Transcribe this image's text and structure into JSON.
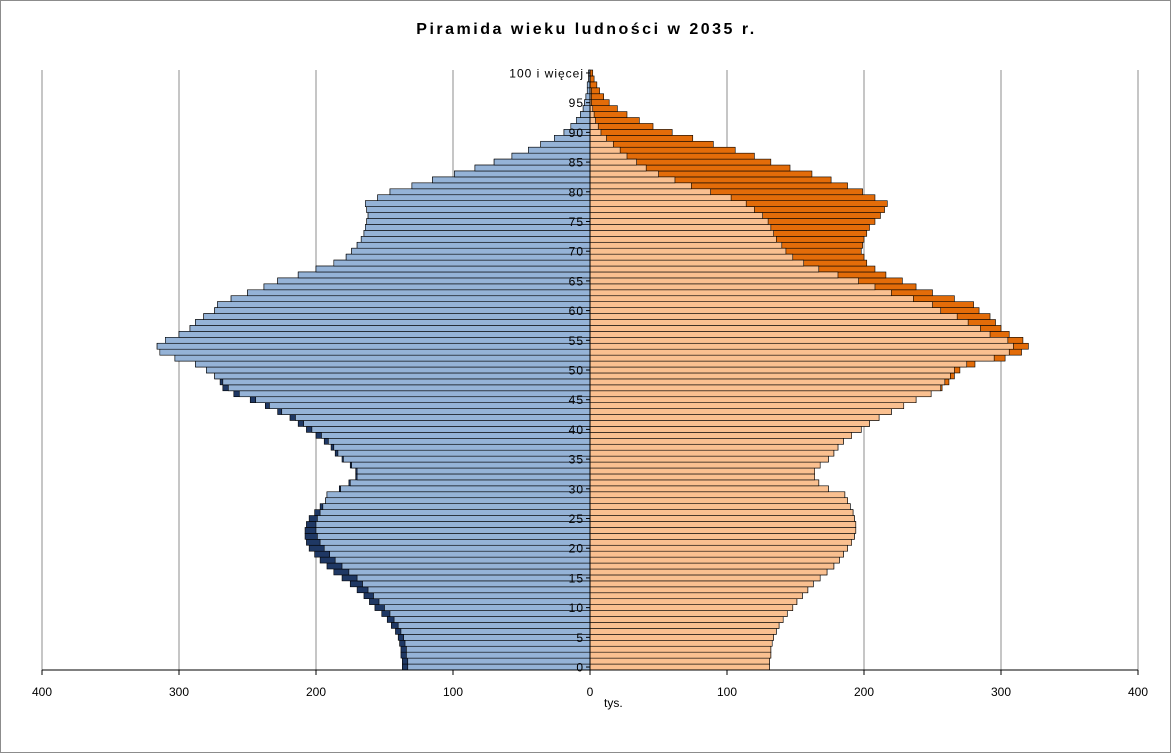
{
  "chart_data": {
    "type": "bar",
    "title": "Piramida wieku ludności w 2035 r.",
    "xlabel": "tys.",
    "ylabel": "",
    "xlim": [
      -400,
      400
    ],
    "x_ticks": [
      "400",
      "300",
      "200",
      "100",
      "0",
      "100",
      "200",
      "300",
      "400"
    ],
    "age_labels": [
      "0",
      "5",
      "10",
      "15",
      "20",
      "25",
      "30",
      "35",
      "40",
      "45",
      "50",
      "55",
      "60",
      "65",
      "70",
      "75",
      "80",
      "85",
      "90",
      "95",
      "100 i więcej"
    ],
    "ages": [
      0,
      1,
      2,
      3,
      4,
      5,
      6,
      7,
      8,
      9,
      10,
      11,
      12,
      13,
      14,
      15,
      16,
      17,
      18,
      19,
      20,
      21,
      22,
      23,
      24,
      25,
      26,
      27,
      28,
      29,
      30,
      31,
      32,
      33,
      34,
      35,
      36,
      37,
      38,
      39,
      40,
      41,
      42,
      43,
      44,
      45,
      46,
      47,
      48,
      49,
      50,
      51,
      52,
      53,
      54,
      55,
      56,
      57,
      58,
      59,
      60,
      61,
      62,
      63,
      64,
      65,
      66,
      67,
      68,
      69,
      70,
      71,
      72,
      73,
      74,
      75,
      76,
      77,
      78,
      79,
      80,
      81,
      82,
      83,
      84,
      85,
      86,
      87,
      88,
      89,
      90,
      91,
      92,
      93,
      94,
      95,
      96,
      97,
      98,
      99,
      100
    ],
    "series": [
      {
        "name": "",
        "side": "left",
        "color": "#95b3d7",
        "values": [
          133,
          133,
          134,
          134,
          135,
          136,
          138,
          140,
          143,
          146,
          150,
          154,
          158,
          162,
          166,
          170,
          176,
          181,
          186,
          190,
          194,
          197,
          199,
          200,
          200,
          199,
          197,
          195,
          193,
          192,
          182,
          175,
          170,
          170,
          174,
          180,
          184,
          187,
          191,
          196,
          203,
          209,
          215,
          225,
          234,
          244,
          256,
          264,
          268,
          274,
          280,
          288,
          303,
          314,
          316,
          310,
          300,
          292,
          288,
          282,
          274,
          272,
          262,
          250,
          238,
          228,
          213,
          200,
          187,
          178,
          174,
          170,
          167,
          165,
          164,
          163,
          162,
          163,
          164,
          155,
          146,
          130,
          115,
          99,
          84,
          70,
          57,
          45,
          36,
          26,
          19,
          14,
          10,
          7,
          5,
          4,
          3,
          2,
          2,
          1,
          1
        ]
      },
      {
        "name": "",
        "side": "left_excess",
        "color": "#1f3864",
        "values": [
          137,
          137,
          138,
          138,
          139,
          140,
          142,
          145,
          148,
          152,
          157,
          161,
          165,
          170,
          175,
          181,
          187,
          192,
          197,
          201,
          205,
          207,
          208,
          208,
          207,
          205,
          201,
          197,
          193,
          192,
          183,
          176,
          171,
          171,
          175,
          181,
          186,
          189,
          194,
          200,
          207,
          213,
          219,
          228,
          237,
          248,
          260,
          268,
          270,
          274,
          280,
          288,
          303,
          314,
          316,
          310,
          300,
          292,
          288,
          282,
          274,
          272,
          262,
          250,
          238,
          228,
          213,
          200,
          187,
          178,
          174,
          170,
          167,
          165,
          164,
          163,
          162,
          163,
          164,
          155,
          146,
          130,
          115,
          99,
          84,
          70,
          57,
          45,
          36,
          26,
          19,
          14,
          10,
          7,
          5,
          4,
          3,
          2,
          2,
          1,
          1
        ]
      },
      {
        "name": "",
        "side": "right",
        "color": "#fac090",
        "values": [
          131,
          131,
          132,
          132,
          133,
          134,
          136,
          138,
          141,
          144,
          148,
          151,
          155,
          159,
          163,
          168,
          173,
          178,
          182,
          185,
          188,
          191,
          193,
          194,
          194,
          193,
          192,
          190,
          188,
          186,
          174,
          167,
          164,
          164,
          168,
          174,
          178,
          181,
          185,
          191,
          198,
          204,
          211,
          220,
          229,
          238,
          249,
          256,
          259,
          263,
          266,
          275,
          295,
          306,
          309,
          305,
          292,
          285,
          276,
          268,
          256,
          250,
          236,
          220,
          208,
          196,
          181,
          167,
          156,
          148,
          143,
          140,
          136,
          134,
          132,
          130,
          126,
          120,
          114,
          103,
          88,
          74,
          62,
          50,
          41,
          34,
          27,
          22,
          17,
          12,
          8,
          6,
          4,
          3,
          2,
          1,
          1,
          1,
          0,
          0,
          0
        ]
      },
      {
        "name": "",
        "side": "right_excess",
        "color": "#e36c09",
        "values": [
          131,
          131,
          132,
          132,
          133,
          134,
          136,
          138,
          141,
          144,
          148,
          151,
          155,
          159,
          163,
          168,
          173,
          178,
          182,
          185,
          188,
          191,
          193,
          194,
          194,
          193,
          192,
          190,
          188,
          186,
          174,
          167,
          164,
          164,
          168,
          174,
          178,
          181,
          185,
          191,
          198,
          204,
          211,
          220,
          229,
          238,
          249,
          257,
          262,
          266,
          270,
          281,
          303,
          315,
          320,
          316,
          306,
          300,
          296,
          292,
          284,
          280,
          266,
          250,
          238,
          228,
          216,
          208,
          202,
          200,
          198,
          199,
          200,
          202,
          204,
          208,
          212,
          215,
          217,
          208,
          199,
          188,
          176,
          162,
          146,
          132,
          120,
          106,
          90,
          75,
          60,
          46,
          36,
          27,
          20,
          14,
          10,
          7,
          5,
          3,
          2
        ]
      }
    ]
  }
}
